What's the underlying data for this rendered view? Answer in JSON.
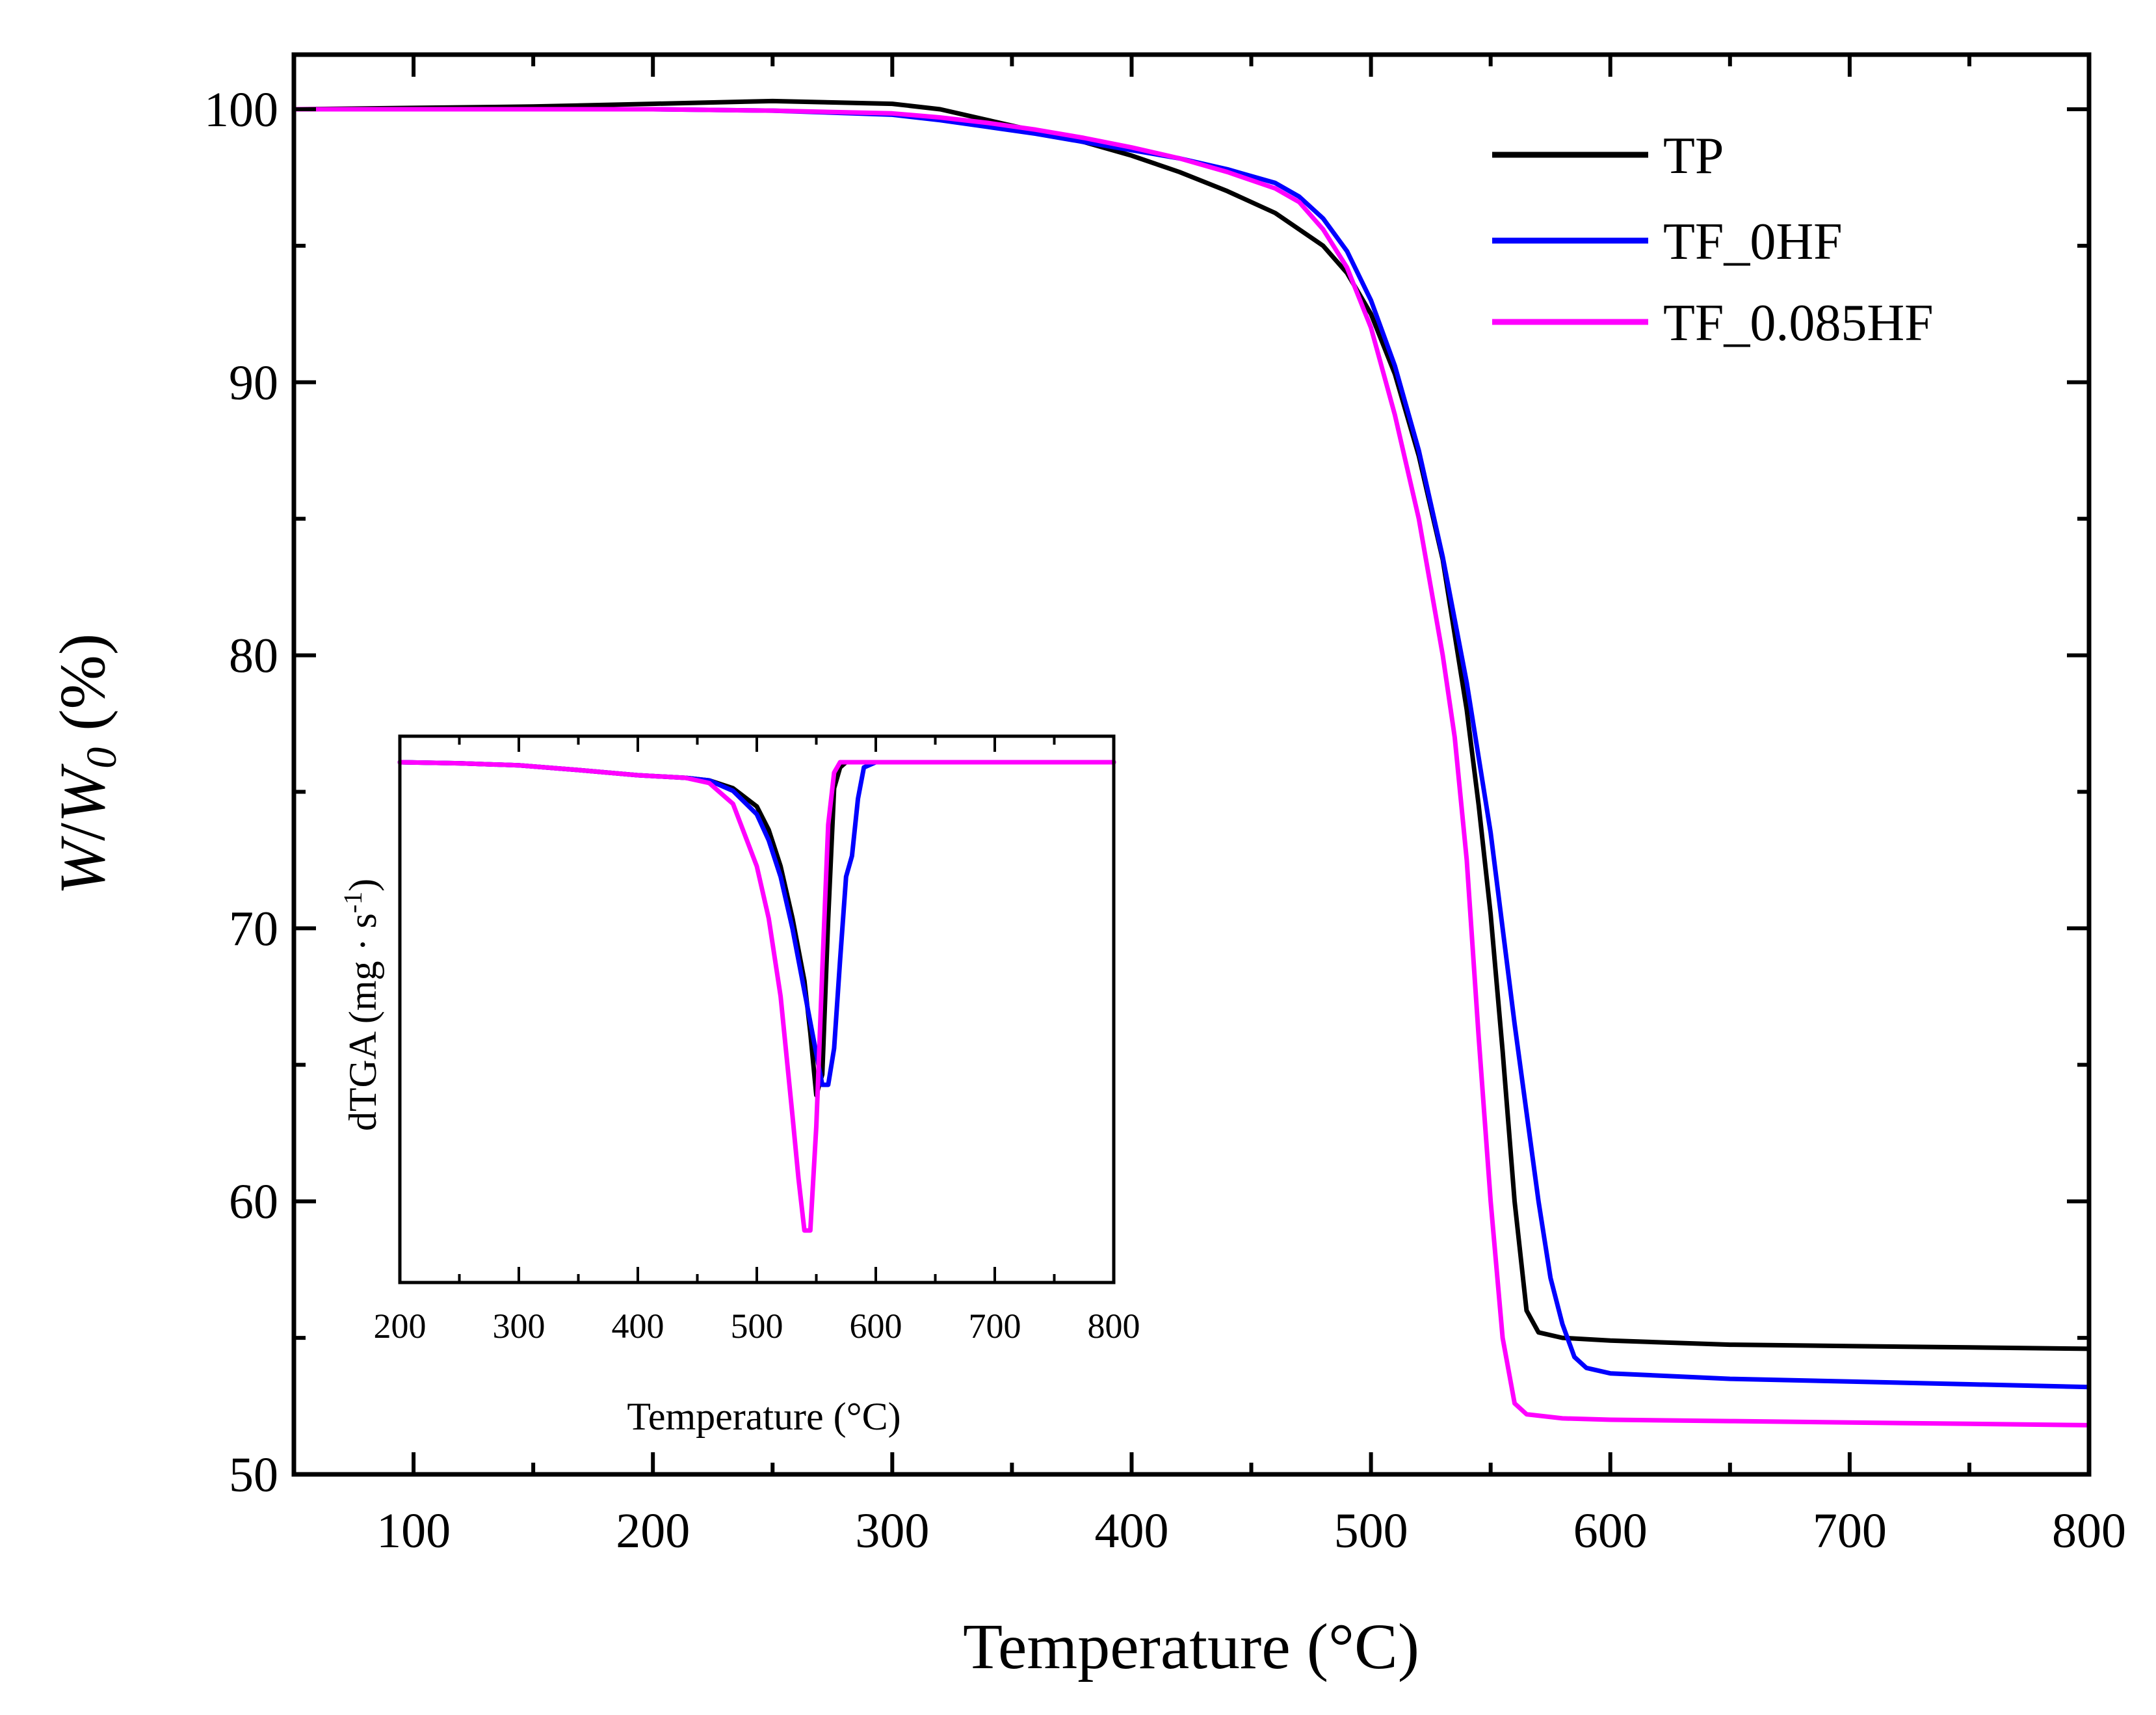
{
  "chart_data": [
    {
      "type": "line",
      "title": "",
      "xlabel": "Temperature (°C)",
      "ylabel": "W/W0 (%)",
      "ylabel_parts": {
        "w1": "W",
        "slash": "/",
        "w2": "W",
        "sub": "0",
        "unit": " (%)"
      },
      "xlim": [
        50,
        800
      ],
      "ylim": [
        50,
        102
      ],
      "xticks": [
        100,
        200,
        300,
        400,
        500,
        600,
        700,
        800
      ],
      "yticks": [
        50,
        60,
        70,
        80,
        90,
        100
      ],
      "legend_position": "top-right",
      "series": [
        {
          "name": "TP",
          "color": "#000000",
          "x": [
            50,
            100,
            150,
            200,
            250,
            300,
            320,
            340,
            360,
            380,
            400,
            420,
            440,
            460,
            480,
            490,
            500,
            510,
            520,
            530,
            540,
            545,
            550,
            555,
            560,
            565,
            570,
            580,
            600,
            650,
            700,
            750,
            800
          ],
          "y": [
            100.0,
            100.05,
            100.1,
            100.2,
            100.3,
            100.2,
            100.0,
            99.6,
            99.2,
            98.8,
            98.3,
            97.7,
            97.0,
            96.2,
            95.0,
            94.0,
            92.5,
            90.3,
            87.3,
            83.5,
            78.0,
            74.5,
            70.5,
            65.5,
            60.0,
            56.0,
            55.2,
            55.0,
            54.9,
            54.75,
            54.7,
            54.65,
            54.6
          ]
        },
        {
          "name": "TF_0HF",
          "color": "#0000ff",
          "x": [
            50,
            100,
            150,
            200,
            250,
            300,
            320,
            340,
            360,
            380,
            400,
            420,
            440,
            460,
            470,
            480,
            490,
            500,
            510,
            520,
            530,
            540,
            550,
            560,
            570,
            575,
            580,
            585,
            590,
            600,
            650,
            700,
            750,
            800
          ],
          "y": [
            100.0,
            100.0,
            100.0,
            100.0,
            99.95,
            99.8,
            99.6,
            99.35,
            99.1,
            98.8,
            98.5,
            98.2,
            97.8,
            97.3,
            96.8,
            96.0,
            94.8,
            93.0,
            90.6,
            87.5,
            83.6,
            79.0,
            73.5,
            66.5,
            60.0,
            57.2,
            55.5,
            54.3,
            53.9,
            53.7,
            53.5,
            53.4,
            53.3,
            53.2
          ]
        },
        {
          "name": "TF_0.085HF",
          "color": "#ff00ff",
          "x": [
            50,
            100,
            150,
            200,
            250,
            300,
            320,
            340,
            360,
            380,
            400,
            420,
            440,
            460,
            470,
            480,
            490,
            500,
            510,
            520,
            530,
            535,
            540,
            545,
            550,
            555,
            560,
            565,
            580,
            600,
            650,
            700,
            750,
            800
          ],
          "y": [
            100.0,
            100.0,
            100.0,
            100.0,
            99.95,
            99.85,
            99.7,
            99.5,
            99.25,
            98.95,
            98.6,
            98.2,
            97.7,
            97.1,
            96.6,
            95.6,
            94.2,
            92.0,
            88.8,
            85.0,
            80.0,
            77.0,
            72.5,
            66.0,
            60.0,
            55.0,
            52.6,
            52.2,
            52.05,
            52.0,
            51.95,
            51.9,
            51.85,
            51.8
          ]
        }
      ]
    },
    {
      "type": "line",
      "title": "",
      "xlabel": "Temperature (°C)",
      "ylabel": "dTGA (mg · s-1)",
      "ylabel_parts": {
        "main": "dTGA (mg · s",
        "sup": "-1",
        "close": ")"
      },
      "xlim": [
        200,
        800
      ],
      "ylim": [
        -1.0,
        0.05
      ],
      "xticks": [
        200,
        300,
        400,
        500,
        600,
        700,
        800
      ],
      "yticks": [],
      "series": [
        {
          "name": "TP",
          "color": "#000000",
          "x": [
            200,
            250,
            300,
            350,
            400,
            440,
            460,
            480,
            500,
            510,
            520,
            530,
            540,
            545,
            550,
            555,
            560,
            565,
            570,
            575,
            580,
            600,
            650,
            700,
            750,
            800
          ],
          "y": [
            0.0,
            -0.002,
            -0.006,
            -0.015,
            -0.025,
            -0.03,
            -0.035,
            -0.05,
            -0.085,
            -0.13,
            -0.2,
            -0.3,
            -0.42,
            -0.52,
            -0.64,
            -0.6,
            -0.3,
            -0.05,
            -0.01,
            0.0,
            0.0,
            0.0,
            0.0,
            0.0,
            0.0,
            0.0
          ]
        },
        {
          "name": "TF_0HF",
          "color": "#0000ff",
          "x": [
            200,
            250,
            300,
            350,
            400,
            440,
            460,
            480,
            500,
            510,
            520,
            530,
            540,
            550,
            555,
            560,
            565,
            570,
            575,
            580,
            585,
            590,
            600,
            650,
            700,
            750,
            800
          ],
          "y": [
            0.0,
            -0.002,
            -0.006,
            -0.015,
            -0.025,
            -0.03,
            -0.035,
            -0.055,
            -0.1,
            -0.15,
            -0.22,
            -0.32,
            -0.44,
            -0.56,
            -0.62,
            -0.62,
            -0.55,
            -0.38,
            -0.22,
            -0.18,
            -0.07,
            -0.01,
            0.0,
            0.0,
            0.0,
            0.0,
            0.0
          ]
        },
        {
          "name": "TF_0.085HF",
          "color": "#ff00ff",
          "x": [
            200,
            250,
            300,
            350,
            400,
            440,
            460,
            480,
            500,
            510,
            520,
            530,
            535,
            540,
            545,
            550,
            555,
            560,
            565,
            570,
            580,
            600,
            650,
            700,
            750,
            800
          ],
          "y": [
            0.0,
            -0.002,
            -0.006,
            -0.015,
            -0.025,
            -0.03,
            -0.04,
            -0.08,
            -0.2,
            -0.3,
            -0.45,
            -0.68,
            -0.8,
            -0.9,
            -0.9,
            -0.7,
            -0.4,
            -0.12,
            -0.02,
            0.0,
            0.0,
            0.0,
            0.0,
            0.0,
            0.0,
            0.0
          ]
        }
      ]
    }
  ]
}
